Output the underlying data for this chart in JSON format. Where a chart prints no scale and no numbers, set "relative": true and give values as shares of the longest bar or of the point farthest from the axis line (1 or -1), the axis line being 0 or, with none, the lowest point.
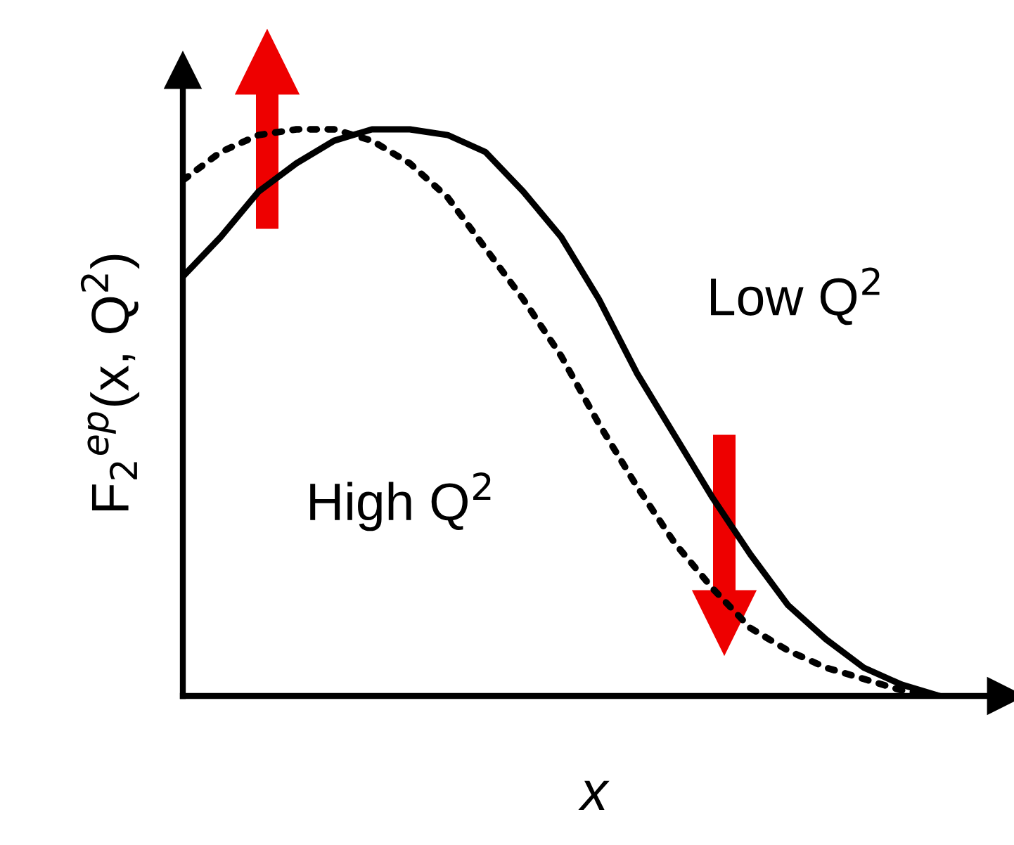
{
  "chart_data": {
    "type": "line",
    "relative": true,
    "xlabel": "x",
    "ylabel": "F$_{2}$$^{ep}$(x, Q$^{2}$)",
    "categories": [
      null,
      null,
      null,
      null,
      null,
      null,
      null,
      null,
      null,
      null,
      null,
      null,
      null,
      null,
      null,
      null,
      null,
      null,
      null,
      null,
      null
    ],
    "series": [
      {
        "name": "Low Q$^{2}$",
        "color": "#000000",
        "line_style": "solid",
        "values": [
          0.74,
          0.81,
          0.89,
          0.94,
          0.98,
          1.0,
          1.0,
          0.99,
          0.96,
          0.89,
          0.81,
          0.7,
          0.57,
          0.46,
          0.35,
          0.25,
          0.16,
          0.1,
          0.05,
          0.02,
          0
        ]
      },
      {
        "name": "High Q$^{2}$",
        "color": "#000000",
        "line_style": "dotted",
        "values": [
          0.91,
          0.96,
          0.99,
          1.0,
          1.0,
          0.98,
          0.94,
          0.88,
          0.79,
          0.7,
          0.6,
          0.48,
          0.37,
          0.27,
          0.19,
          0.12,
          0.08,
          0.05,
          0.03,
          0.01,
          0
        ]
      }
    ],
    "legend": false,
    "marker": "none"
  }
}
